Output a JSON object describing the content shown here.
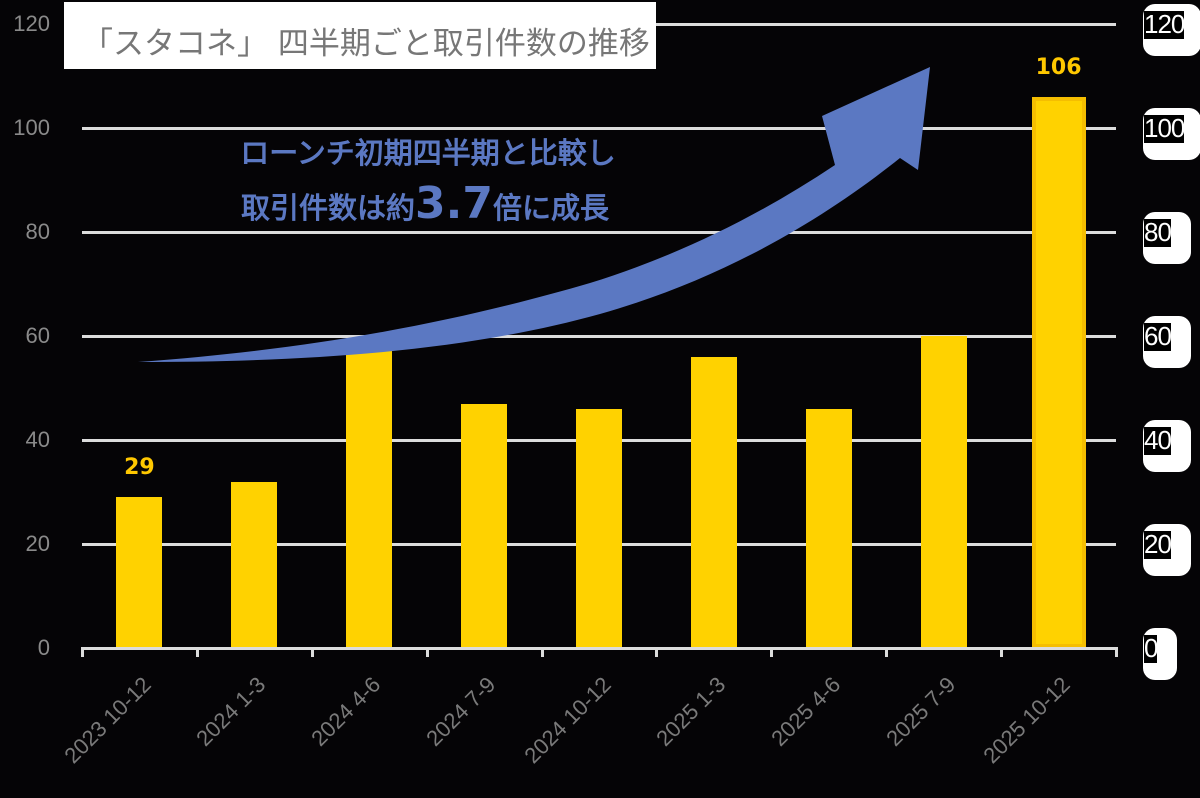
{
  "chart_data": {
    "type": "bar",
    "title": "「スタコネ」 四半期ごと取引件数の推移",
    "categories": [
      "2023 10-12",
      "2024 1-3",
      "2024 4-6",
      "2024 7-9",
      "2024 10-12",
      "2025 1-3",
      "2025 4-6",
      "2025 7-9",
      "2025 10-12"
    ],
    "values": [
      29,
      32,
      58,
      47,
      46,
      56,
      46,
      60,
      106
    ],
    "data_labels": [
      {
        "index": 0,
        "text": "29"
      },
      {
        "index": 8,
        "text": "106"
      }
    ],
    "xlabel": "",
    "ylabel": "",
    "ylim": [
      0,
      120
    ],
    "yticks": [
      "0",
      "20",
      "40",
      "60",
      "80",
      "100",
      "120"
    ],
    "y2ticks": [
      "0",
      "20",
      "40",
      "60",
      "80",
      "100",
      "120"
    ],
    "grid": true,
    "legend": "none",
    "annotation": {
      "line1": "ローンチ初期四半期と比較し",
      "line2_prefix": "取引件数は約",
      "line2_big": "3.7",
      "line2_suffix": "倍に成長",
      "arrow": "upward-curved-arrow"
    },
    "colors": {
      "bar": "#ffd200",
      "bar_highlight_border": "#f5be00",
      "label": "#ffc800",
      "arrow": "#5b78c2",
      "grid": "#dcdcdc",
      "background": "#050406"
    }
  }
}
